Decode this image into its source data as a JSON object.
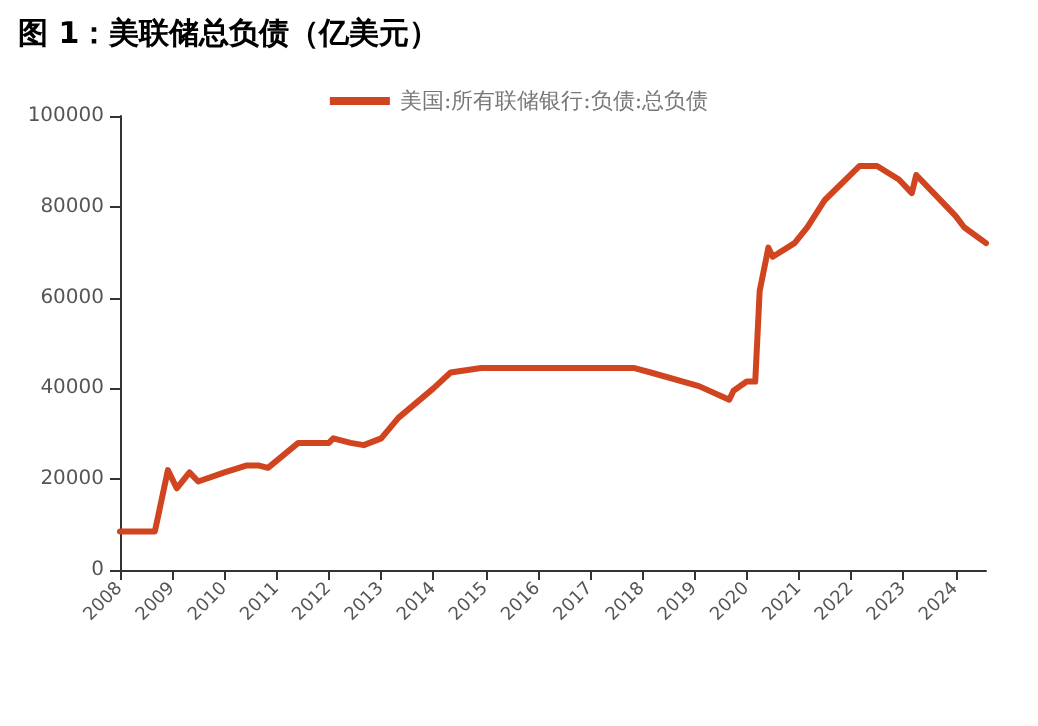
{
  "chart_data": {
    "type": "line",
    "title": "图 1：美联储总负债（亿美元）",
    "x": [
      "2008-01",
      "2008-09",
      "2008-12",
      "2009-02",
      "2009-05",
      "2009-07",
      "2010-01",
      "2010-06",
      "2010-09",
      "2010-11",
      "2011-06",
      "2012-01",
      "2012-02",
      "2012-06",
      "2012-09",
      "2013-01",
      "2013-05",
      "2014-01",
      "2014-05",
      "2014-12",
      "2017-11",
      "2018-03",
      "2019-02",
      "2019-09",
      "2019-10",
      "2020-01",
      "2020-03",
      "2020-04",
      "2020-06",
      "2020-07",
      "2020-12",
      "2021-03",
      "2021-07",
      "2022-03",
      "2022-07",
      "2022-12",
      "2023-03",
      "2023-04",
      "2023-08",
      "2024-01",
      "2024-03",
      "2024-08"
    ],
    "series": [
      {
        "name": "美国:所有联储银行:负债:总负债",
        "color": "#d0441f",
        "values": [
          8500,
          8500,
          22000,
          18000,
          21500,
          19500,
          21500,
          23000,
          23000,
          22500,
          28000,
          28000,
          29000,
          28000,
          27500,
          29000,
          33500,
          40000,
          43500,
          44500,
          44500,
          43500,
          40500,
          37500,
          39500,
          41500,
          41500,
          61500,
          71000,
          69000,
          72000,
          75500,
          81500,
          89000,
          89000,
          86000,
          83000,
          87000,
          83000,
          78000,
          75500,
          72000
        ]
      }
    ],
    "xlim": [
      "2008-01",
      "2024-08"
    ],
    "xticks": [
      "2008",
      "2009",
      "2010",
      "2011",
      "2012",
      "2013",
      "2014",
      "2015",
      "2016",
      "2017",
      "2018",
      "2019",
      "2020",
      "2021",
      "2022",
      "2023",
      "2024"
    ],
    "ylim": [
      0,
      100000
    ],
    "yticks": [
      0,
      20000,
      40000,
      60000,
      80000,
      100000
    ],
    "grid": false,
    "legend": "top",
    "marker": "none",
    "line_style": "solid"
  }
}
